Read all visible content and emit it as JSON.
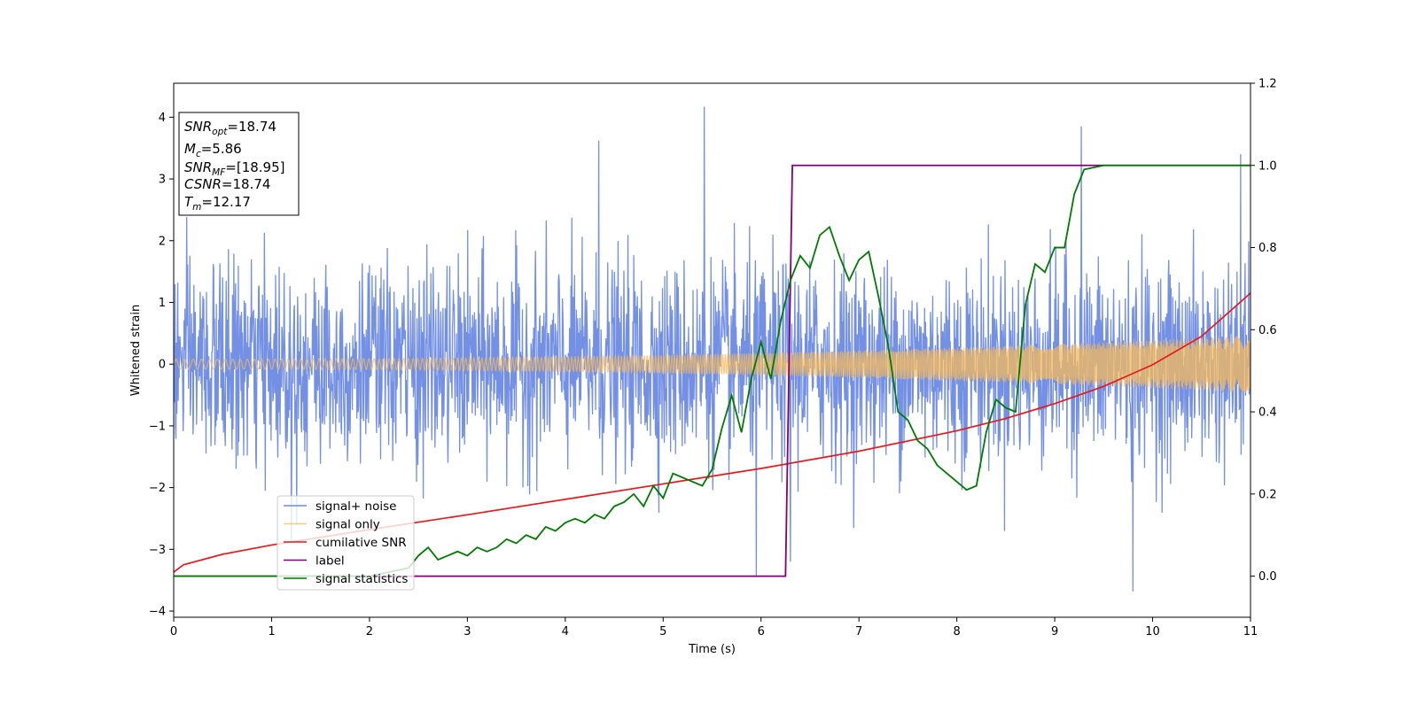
{
  "chart_data": {
    "type": "line",
    "title": "",
    "xlabel": "Time (s)",
    "ylabel": "Whitened strain",
    "y2label": "",
    "xlim": [
      0,
      11
    ],
    "ylim": [
      -4.1,
      4.55
    ],
    "y2lim": [
      -0.1,
      1.2
    ],
    "x_ticks": [
      0,
      1,
      2,
      3,
      4,
      5,
      6,
      7,
      8,
      9,
      10,
      11
    ],
    "y_ticks": [
      -4,
      -3,
      -2,
      -1,
      0,
      1,
      2,
      3,
      4
    ],
    "y2_ticks": [
      0.0,
      0.2,
      0.4,
      0.6,
      0.8,
      1.0,
      1.2
    ],
    "grid": false,
    "legend_position": "lower-left",
    "series": [
      {
        "name": "signal+ noise",
        "axis": "left",
        "color": "#6c8ae4",
        "description_values": "gaussian noise, std approx 0.8, peaks between -3.7 and 4.17",
        "noise_std": 0.8,
        "peaks": [
          [
            5.42,
            4.17
          ],
          [
            9.27,
            3.85
          ],
          [
            4.34,
            3.62
          ],
          [
            10.9,
            3.4
          ],
          [
            9.8,
            -3.68
          ],
          [
            5.95,
            -3.45
          ],
          [
            1.2,
            -2.85
          ],
          [
            6.3,
            -3.2
          ]
        ]
      },
      {
        "name": "signal only",
        "axis": "left",
        "color": "#f5b95a",
        "description_values": "chirp, amplitude grows from about 0.08 at t=0 to about 0.46 at t=11",
        "amplitude_start": 0.08,
        "amplitude_end": 0.46
      },
      {
        "name": "cumilative SNR",
        "axis": "left",
        "color": "#e8191c",
        "x": [
          0,
          0.1,
          0.5,
          1,
          2,
          3,
          4,
          5,
          6,
          7,
          8,
          8.5,
          9,
          9.5,
          10,
          10.5,
          11
        ],
        "y": [
          -3.37,
          -3.25,
          -3.08,
          -2.93,
          -2.68,
          -2.44,
          -2.19,
          -1.94,
          -1.69,
          -1.41,
          -1.08,
          -0.88,
          -0.64,
          -0.36,
          -0.01,
          0.45,
          1.15
        ]
      },
      {
        "name": "label",
        "axis": "right",
        "color": "#800080",
        "x": [
          0,
          6.25,
          6.32,
          11
        ],
        "y": [
          0.0,
          0.0,
          1.0,
          1.0
        ]
      },
      {
        "name": "signal statistics",
        "axis": "right",
        "color": "#007a00",
        "x": [
          0,
          2.0,
          2.2,
          2.4,
          2.5,
          2.6,
          2.7,
          2.8,
          2.9,
          3.0,
          3.1,
          3.2,
          3.3,
          3.4,
          3.5,
          3.6,
          3.7,
          3.8,
          3.9,
          4.0,
          4.1,
          4.2,
          4.3,
          4.4,
          4.5,
          4.6,
          4.7,
          4.8,
          4.9,
          5.0,
          5.1,
          5.2,
          5.3,
          5.4,
          5.5,
          5.6,
          5.7,
          5.8,
          5.9,
          6.0,
          6.1,
          6.2,
          6.3,
          6.4,
          6.5,
          6.6,
          6.7,
          6.8,
          6.9,
          7.0,
          7.1,
          7.2,
          7.3,
          7.4,
          7.5,
          7.6,
          7.7,
          7.8,
          7.9,
          8.0,
          8.1,
          8.2,
          8.3,
          8.4,
          8.5,
          8.6,
          8.7,
          8.8,
          8.9,
          9.0,
          9.1,
          9.2,
          9.3,
          9.5,
          10.0,
          11.0
        ],
        "y": [
          0.0,
          0.0,
          0.01,
          0.02,
          0.05,
          0.07,
          0.04,
          0.05,
          0.06,
          0.05,
          0.07,
          0.06,
          0.07,
          0.09,
          0.08,
          0.1,
          0.09,
          0.12,
          0.11,
          0.13,
          0.14,
          0.13,
          0.15,
          0.14,
          0.17,
          0.18,
          0.2,
          0.17,
          0.22,
          0.19,
          0.25,
          0.24,
          0.23,
          0.22,
          0.26,
          0.36,
          0.44,
          0.35,
          0.48,
          0.57,
          0.48,
          0.62,
          0.72,
          0.78,
          0.75,
          0.83,
          0.85,
          0.78,
          0.72,
          0.77,
          0.79,
          0.68,
          0.56,
          0.4,
          0.38,
          0.33,
          0.31,
          0.27,
          0.25,
          0.23,
          0.21,
          0.22,
          0.35,
          0.43,
          0.41,
          0.4,
          0.66,
          0.76,
          0.74,
          0.8,
          0.8,
          0.93,
          0.99,
          1.0,
          1.0,
          1.0
        ]
      }
    ],
    "annotation_box": {
      "lines": [
        {
          "label": "SNR",
          "sub": "opt",
          "value": "=18.74"
        },
        {
          "label": "M",
          "sub": "c",
          "value": "=5.86"
        },
        {
          "label": "SNR",
          "sub": "MF",
          "value": "=[18.95]"
        },
        {
          "label": "CSNR",
          "sub": "",
          "value": "=18.74"
        },
        {
          "label": "T",
          "sub": "m",
          "value": "=12.17"
        }
      ]
    }
  }
}
